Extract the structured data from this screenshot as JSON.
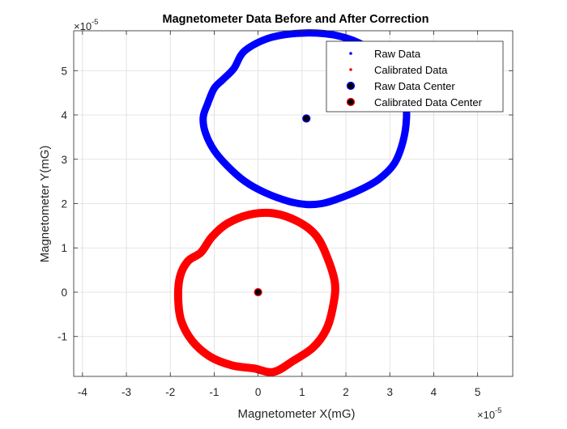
{
  "chart_data": {
    "type": "scatter",
    "title": "Magnetometer Data Before and After Correction",
    "xlabel": "Magnetometer X(mG)",
    "ylabel": "Magnetometer Y(mG)",
    "x_multiplier": "×10",
    "x_exponent": "-5",
    "y_multiplier": "×10",
    "y_exponent": "-5",
    "xlim": [
      -4.2,
      5.8
    ],
    "ylim": [
      -1.9,
      5.9
    ],
    "xticks": [
      -4,
      -3,
      -2,
      -1,
      0,
      1,
      2,
      3,
      4,
      5
    ],
    "xtick_labels": [
      "-4",
      "-3",
      "-2",
      "-1",
      "0",
      "1",
      "2",
      "3",
      "4",
      "5"
    ],
    "yticks": [
      -1,
      0,
      1,
      2,
      3,
      4,
      5
    ],
    "ytick_labels": [
      "-1",
      "0",
      "1",
      "2",
      "3",
      "4",
      "5"
    ],
    "grid": true,
    "legend_position": "top-right",
    "series": [
      {
        "name": "Raw Data",
        "color": "#0000ff",
        "marker": "dot",
        "center": [
          1.1,
          3.92
        ],
        "points": [
          [
            3.38,
            3.92
          ],
          [
            3.35,
            4.35
          ],
          [
            3.2,
            4.8
          ],
          [
            2.9,
            5.2
          ],
          [
            2.45,
            5.55
          ],
          [
            1.85,
            5.78
          ],
          [
            1.1,
            5.85
          ],
          [
            0.3,
            5.75
          ],
          [
            -0.3,
            5.45
          ],
          [
            -0.55,
            5.05
          ],
          [
            -0.8,
            4.8
          ],
          [
            -1.0,
            4.6
          ],
          [
            -1.15,
            4.25
          ],
          [
            -1.25,
            3.95
          ],
          [
            -1.2,
            3.6
          ],
          [
            -1.0,
            3.2
          ],
          [
            -0.7,
            2.85
          ],
          [
            -0.3,
            2.5
          ],
          [
            0.15,
            2.25
          ],
          [
            0.7,
            2.05
          ],
          [
            1.1,
            1.98
          ],
          [
            1.45,
            2.0
          ],
          [
            1.8,
            2.1
          ],
          [
            2.3,
            2.3
          ],
          [
            2.75,
            2.55
          ],
          [
            3.1,
            2.9
          ],
          [
            3.3,
            3.4
          ]
        ]
      },
      {
        "name": "Calibrated Data",
        "color": "#ff0000",
        "marker": "dot",
        "center": [
          0.0,
          0.0
        ],
        "points": [
          [
            1.75,
            0.2
          ],
          [
            1.55,
            0.85
          ],
          [
            1.3,
            1.3
          ],
          [
            0.9,
            1.6
          ],
          [
            0.35,
            1.78
          ],
          [
            -0.2,
            1.75
          ],
          [
            -0.7,
            1.55
          ],
          [
            -1.05,
            1.25
          ],
          [
            -1.3,
            0.9
          ],
          [
            -1.6,
            0.7
          ],
          [
            -1.78,
            0.35
          ],
          [
            -1.82,
            -0.15
          ],
          [
            -1.75,
            -0.65
          ],
          [
            -1.5,
            -1.1
          ],
          [
            -1.1,
            -1.45
          ],
          [
            -0.6,
            -1.65
          ],
          [
            -0.1,
            -1.72
          ],
          [
            0.35,
            -1.8
          ],
          [
            0.8,
            -1.55
          ],
          [
            1.25,
            -1.25
          ],
          [
            1.55,
            -0.85
          ],
          [
            1.7,
            -0.35
          ]
        ]
      },
      {
        "name": "Raw Data Center",
        "color": "#0000ff",
        "marker": "circle",
        "points": [
          [
            1.1,
            3.92
          ]
        ]
      },
      {
        "name": "Calibrated Data Center",
        "color": "#ff0000",
        "marker": "circle",
        "points": [
          [
            0.0,
            0.0
          ]
        ]
      }
    ]
  }
}
